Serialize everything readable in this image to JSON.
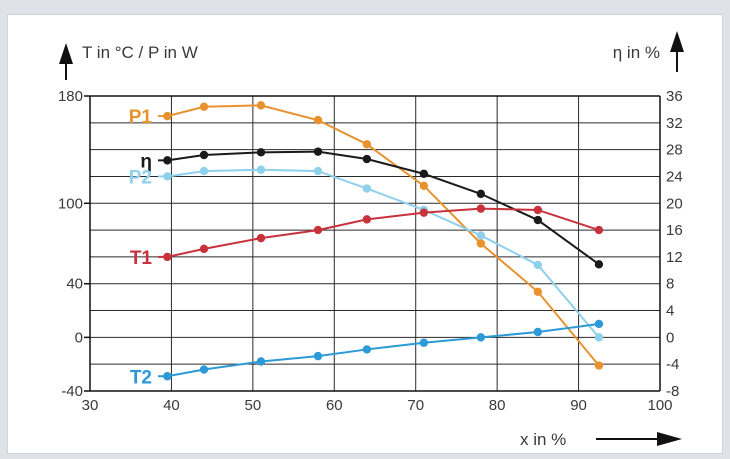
{
  "chart_data": {
    "type": "line",
    "title": "",
    "xlabel": "x in %",
    "ylabel_left": "T in °C / P in W",
    "ylabel_right": "η in %",
    "xlim": [
      30,
      100
    ],
    "ylim_left": [
      -40,
      180
    ],
    "ylim_right": [
      -8,
      36
    ],
    "grid": true,
    "x_ticks": [
      30,
      40,
      50,
      60,
      70,
      80,
      90,
      100
    ],
    "y_left_ticks": [
      -40,
      0,
      40,
      100,
      180
    ],
    "y_right_ticks": [
      -8,
      -4,
      0,
      4,
      8,
      12,
      16,
      20,
      24,
      28,
      32,
      36
    ],
    "series": [
      {
        "name": "P1",
        "axis": "left",
        "color": "#e8922e",
        "x": [
          39.5,
          44,
          51,
          58,
          64,
          71,
          78,
          85,
          92.5
        ],
        "y": [
          165,
          172,
          173,
          162,
          144,
          113,
          70,
          34,
          -21
        ]
      },
      {
        "name": "η",
        "axis": "right",
        "color": "#1a1a1a",
        "x": [
          39.5,
          44,
          51,
          58,
          64,
          71,
          78,
          85,
          92.5
        ],
        "y": [
          26.4,
          27.2,
          27.6,
          27.7,
          26.6,
          24.4,
          21.4,
          17.5,
          10.9
        ]
      },
      {
        "name": "P2",
        "axis": "left",
        "color": "#8fd0ec",
        "x": [
          39.5,
          44,
          51,
          58,
          64,
          71,
          78,
          85,
          92.5
        ],
        "y": [
          120,
          124,
          125,
          124,
          111,
          95,
          76,
          54,
          0
        ]
      },
      {
        "name": "T1",
        "axis": "left",
        "color": "#c8323c",
        "x": [
          39.5,
          44,
          51,
          58,
          64,
          71,
          78,
          85,
          92.5
        ],
        "y": [
          60,
          66,
          74,
          80,
          88,
          93,
          96,
          95,
          80
        ]
      },
      {
        "name": "T2",
        "axis": "left",
        "color": "#2b9ad6",
        "x": [
          39.5,
          44,
          51,
          58,
          64,
          71,
          78,
          85,
          92.5
        ],
        "y": [
          -29,
          -24,
          -18,
          -14,
          -9,
          -4,
          0,
          4,
          10
        ]
      }
    ]
  }
}
